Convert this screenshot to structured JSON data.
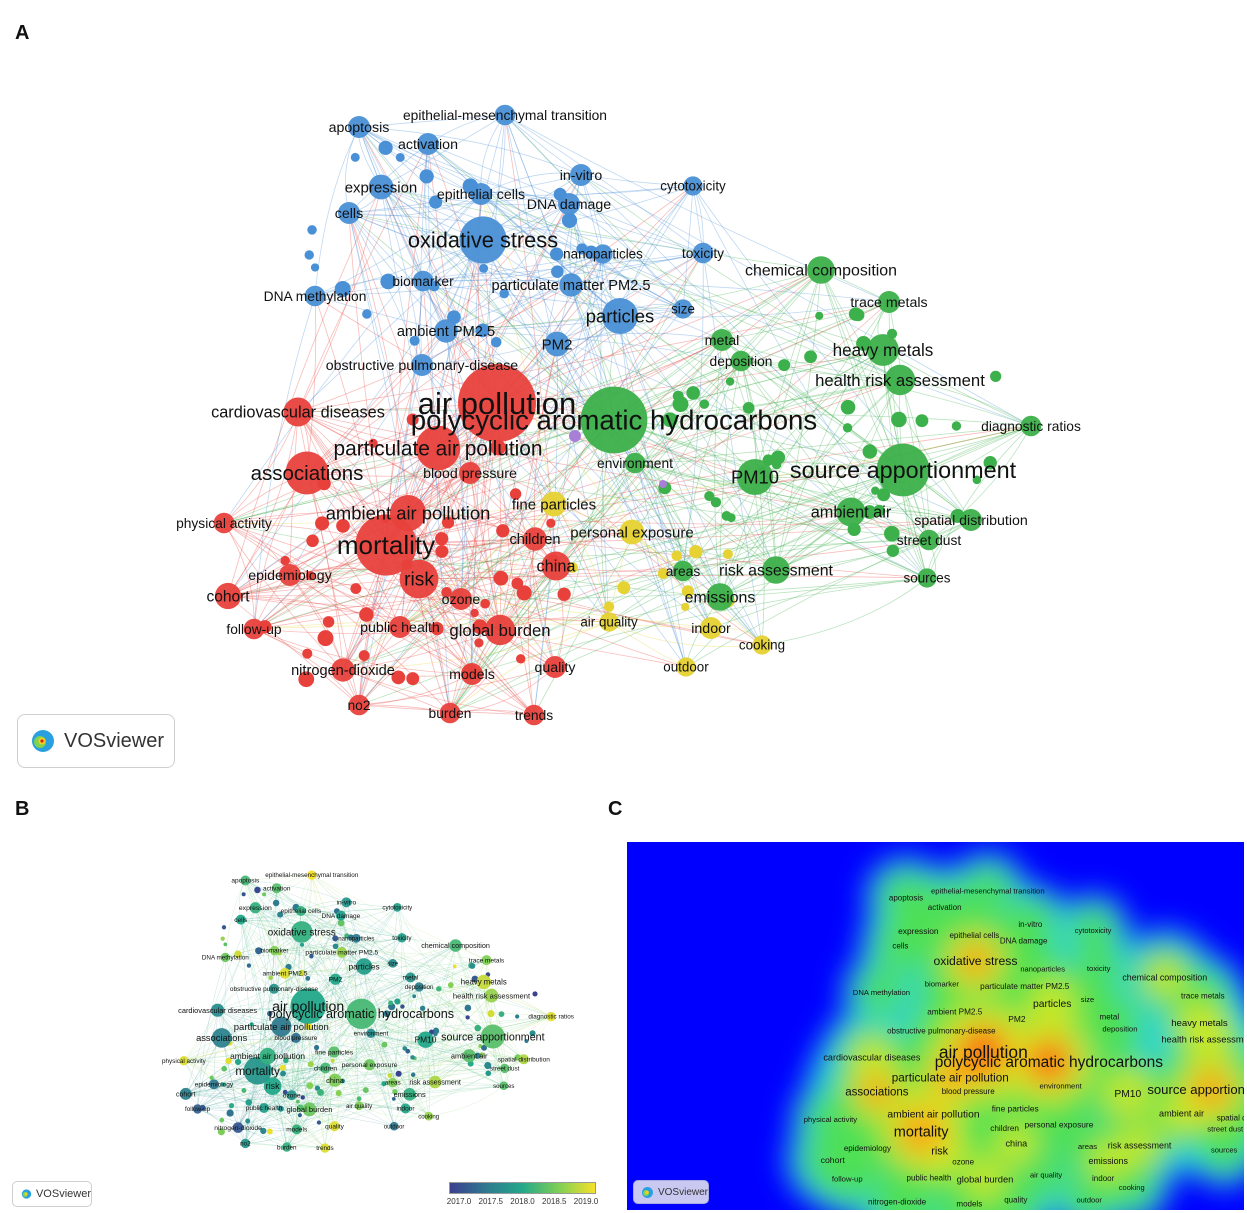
{
  "panels": {
    "a": {
      "letter": "A"
    },
    "b": {
      "letter": "B"
    },
    "c": {
      "letter": "C"
    }
  },
  "brand": {
    "name": "VOSviewer"
  },
  "colors": {
    "red": "#e8413c",
    "blue": "#4a90d6",
    "green": "#3cb04a",
    "yellow": "#e6d232",
    "purple": "#a77fd6",
    "density_bg": "#0000ff"
  },
  "overlay_legend": {
    "ticks": [
      "2017.0",
      "2017.5",
      "2018.0",
      "2018.5",
      "2019.0"
    ],
    "colormap": [
      "#3b3f8f",
      "#2f7a8f",
      "#23a88a",
      "#7fcf56",
      "#f5e12a"
    ]
  },
  "keywords": [
    {
      "id": "air pollution",
      "label": "air pollution",
      "cluster": "red",
      "weight": 5.0,
      "year": 2018.0
    },
    {
      "id": "polycyclic aromatic hydrocarbons",
      "label": "polycyclic aromatic hydrocarbons",
      "cluster": "green",
      "weight": 4.2,
      "year": 2018.2
    },
    {
      "id": "mortality",
      "label": "mortality",
      "cluster": "red",
      "weight": 3.8,
      "year": 2017.8
    },
    {
      "id": "source apportionment",
      "label": "source apportionment",
      "cluster": "green",
      "weight": 3.2,
      "year": 2018.3
    },
    {
      "id": "oxidative stress",
      "label": "oxidative stress",
      "cluster": "blue",
      "weight": 2.8,
      "year": 2018.1
    },
    {
      "id": "associations",
      "label": "associations",
      "cluster": "red",
      "weight": 2.5,
      "year": 2017.6
    },
    {
      "id": "particulate air pollution",
      "label": "particulate air pollution",
      "cluster": "red",
      "weight": 2.6,
      "year": 2017.5
    },
    {
      "id": "PM10",
      "label": "PM10",
      "cluster": "green",
      "weight": 2.0,
      "year": 2018.0
    },
    {
      "id": "particles",
      "label": "particles",
      "cluster": "blue",
      "weight": 2.0,
      "year": 2017.9
    },
    {
      "id": "risk",
      "label": "risk",
      "cluster": "red",
      "weight": 2.2,
      "year": 2018.0
    },
    {
      "id": "ambient air pollution",
      "label": "ambient air pollution",
      "cluster": "red",
      "weight": 2.0,
      "year": 2018.1
    },
    {
      "id": "cardiovascular diseases",
      "label": "cardiovascular diseases",
      "cluster": "red",
      "weight": 1.5,
      "year": 2017.7
    },
    {
      "id": "health risk assessment",
      "label": "health risk assessment",
      "cluster": "green",
      "weight": 1.6,
      "year": 2018.6
    },
    {
      "id": "heavy metals",
      "label": "heavy metals",
      "cluster": "green",
      "weight": 1.7,
      "year": 2018.8
    },
    {
      "id": "chemical composition",
      "label": "chemical composition",
      "cluster": "green",
      "weight": 1.4,
      "year": 2018.2
    },
    {
      "id": "global burden",
      "label": "global burden",
      "cluster": "red",
      "weight": 1.6,
      "year": 2018.4
    },
    {
      "id": "china",
      "label": "china",
      "cluster": "red",
      "weight": 1.5,
      "year": 2018.5
    },
    {
      "id": "ambient air",
      "label": "ambient air",
      "cluster": "green",
      "weight": 1.5,
      "year": 2018.3
    },
    {
      "id": "risk assessment",
      "label": "risk assessment",
      "cluster": "green",
      "weight": 1.4,
      "year": 2018.7
    },
    {
      "id": "emissions",
      "label": "emissions",
      "cluster": "green",
      "weight": 1.4,
      "year": 2018.1
    },
    {
      "id": "cohort",
      "label": "cohort",
      "cluster": "red",
      "weight": 1.3,
      "year": 2017.6
    },
    {
      "id": "fine particles",
      "label": "fine particles",
      "cluster": "yellow",
      "weight": 1.2,
      "year": 2018.3
    },
    {
      "id": "personal exposure",
      "label": "personal exposure",
      "cluster": "yellow",
      "weight": 1.2,
      "year": 2018.4
    },
    {
      "id": "children",
      "label": "children",
      "cluster": "red",
      "weight": 1.1,
      "year": 2018.2
    },
    {
      "id": "PM2",
      "label": "PM2",
      "cluster": "blue",
      "weight": 1.2,
      "year": 2018.0
    },
    {
      "id": "expression",
      "label": "expression",
      "cluster": "blue",
      "weight": 1.2,
      "year": 2018.1
    },
    {
      "id": "apoptosis",
      "label": "apoptosis",
      "cluster": "blue",
      "weight": 1.0,
      "year": 2018.2
    },
    {
      "id": "activation",
      "label": "activation",
      "cluster": "blue",
      "weight": 1.0,
      "year": 2018.3
    },
    {
      "id": "cells",
      "label": "cells",
      "cluster": "blue",
      "weight": 1.0,
      "year": 2018.0
    },
    {
      "id": "epithelial cells",
      "label": "epithelial cells",
      "cluster": "blue",
      "weight": 1.0,
      "year": 2018.1
    },
    {
      "id": "in-vitro",
      "label": "in-vitro",
      "cluster": "blue",
      "weight": 1.0,
      "year": 2017.8
    },
    {
      "id": "DNA damage",
      "label": "DNA damage",
      "cluster": "blue",
      "weight": 1.0,
      "year": 2017.9
    },
    {
      "id": "epithelial-mesenchymal transition",
      "label": "epithelial-mesenchymal transition",
      "cluster": "blue",
      "weight": 0.9,
      "year": 2019.0
    },
    {
      "id": "cytotoxicity",
      "label": "cytotoxicity",
      "cluster": "blue",
      "weight": 0.8,
      "year": 2017.9
    },
    {
      "id": "toxicity",
      "label": "toxicity",
      "cluster": "blue",
      "weight": 0.9,
      "year": 2017.9
    },
    {
      "id": "nanoparticles",
      "label": "nanoparticles",
      "cluster": "blue",
      "weight": 0.8,
      "year": 2017.5
    },
    {
      "id": "biomarker",
      "label": "biomarker",
      "cluster": "blue",
      "weight": 0.9,
      "year": 2018.5
    },
    {
      "id": "particulate matter PM2.5",
      "label": "particulate matter PM2.5",
      "cluster": "blue",
      "weight": 1.1,
      "year": 2018.6
    },
    {
      "id": "DNA methylation",
      "label": "DNA methylation",
      "cluster": "blue",
      "weight": 0.9,
      "year": 2018.4
    },
    {
      "id": "ambient PM2.5",
      "label": "ambient PM2.5",
      "cluster": "blue",
      "weight": 1.1,
      "year": 2018.9
    },
    {
      "id": "obstructive pulmonary-disease",
      "label": "obstructive pulmonary-disease",
      "cluster": "blue",
      "weight": 1.0,
      "year": 2017.8
    },
    {
      "id": "size",
      "label": "size",
      "cluster": "blue",
      "weight": 0.8,
      "year": 2017.7
    },
    {
      "id": "trace metals",
      "label": "trace metals",
      "cluster": "green",
      "weight": 1.0,
      "year": 2018.5
    },
    {
      "id": "metal",
      "label": "metal",
      "cluster": "green",
      "weight": 1.0,
      "year": 2017.8
    },
    {
      "id": "deposition",
      "label": "deposition",
      "cluster": "green",
      "weight": 0.9,
      "year": 2017.6
    },
    {
      "id": "diagnostic ratios",
      "label": "diagnostic ratios",
      "cluster": "green",
      "weight": 0.9,
      "year": 2018.9
    },
    {
      "id": "environment",
      "label": "environment",
      "cluster": "green",
      "weight": 0.9,
      "year": 2017.7
    },
    {
      "id": "spatial distribution",
      "label": "spatial distribution",
      "cluster": "green",
      "weight": 1.0,
      "year": 2018.7
    },
    {
      "id": "street dust",
      "label": "street dust",
      "cluster": "green",
      "weight": 0.9,
      "year": 2018.3
    },
    {
      "id": "sources",
      "label": "sources",
      "cluster": "green",
      "weight": 0.8,
      "year": 2018.3
    },
    {
      "id": "areas",
      "label": "areas",
      "cluster": "green",
      "weight": 0.9,
      "year": 2018.5
    },
    {
      "id": "indoor",
      "label": "indoor",
      "cluster": "yellow",
      "weight": 1.0,
      "year": 2018.0
    },
    {
      "id": "cooking",
      "label": "cooking",
      "cluster": "yellow",
      "weight": 0.8,
      "year": 2018.6
    },
    {
      "id": "outdoor",
      "label": "outdoor",
      "cluster": "yellow",
      "weight": 0.8,
      "year": 2017.5
    },
    {
      "id": "air quality",
      "label": "air quality",
      "cluster": "yellow",
      "weight": 0.8,
      "year": 2018.5
    },
    {
      "id": "quality",
      "label": "quality",
      "cluster": "red",
      "weight": 1.0,
      "year": 2018.9
    },
    {
      "id": "models",
      "label": "models",
      "cluster": "red",
      "weight": 1.0,
      "year": 2018.1
    },
    {
      "id": "trends",
      "label": "trends",
      "cluster": "red",
      "weight": 0.9,
      "year": 2018.9
    },
    {
      "id": "burden",
      "label": "burden",
      "cluster": "red",
      "weight": 0.9,
      "year": 2018.1
    },
    {
      "id": "no2",
      "label": "no2",
      "cluster": "red",
      "weight": 0.9,
      "year": 2017.8
    },
    {
      "id": "nitrogen-dioxide",
      "label": "nitrogen-dioxide",
      "cluster": "red",
      "weight": 1.1,
      "year": 2017.2
    },
    {
      "id": "public health",
      "label": "public health",
      "cluster": "red",
      "weight": 1.0,
      "year": 2017.9
    },
    {
      "id": "ozone",
      "label": "ozone",
      "cluster": "red",
      "weight": 1.0,
      "year": 2017.8
    },
    {
      "id": "follow-up",
      "label": "follow-up",
      "cluster": "red",
      "weight": 0.9,
      "year": 2017.3
    },
    {
      "id": "epidemiology",
      "label": "epidemiology",
      "cluster": "red",
      "weight": 1.0,
      "year": 2017.5
    },
    {
      "id": "physical activity",
      "label": "physical activity",
      "cluster": "red",
      "weight": 0.9,
      "year": 2018.9
    },
    {
      "id": "blood pressure",
      "label": "blood pressure",
      "cluster": "red",
      "weight": 1.0,
      "year": 2017.4
    }
  ]
}
